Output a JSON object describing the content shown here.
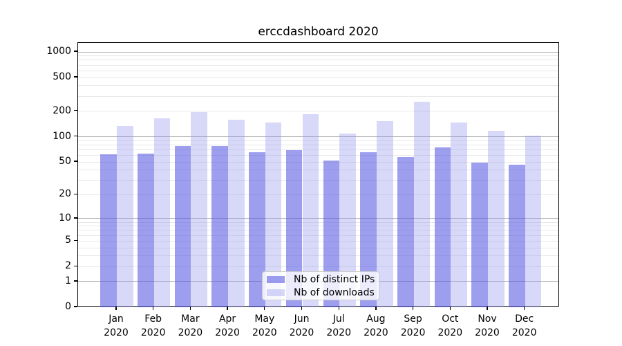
{
  "title": "erccdashboard 2020",
  "chart_data": {
    "type": "bar",
    "title": "erccdashboard 2020",
    "xlabel": "",
    "ylabel": "",
    "scale": "log1p",
    "grid": "horizontal",
    "legend_position": "lower center",
    "categories": [
      "Jan 2020",
      "Feb 2020",
      "Mar 2020",
      "Apr 2020",
      "May 2020",
      "Jun 2020",
      "Jul 2020",
      "Aug 2020",
      "Sep 2020",
      "Oct 2020",
      "Nov 2020",
      "Dec 2020"
    ],
    "series": [
      {
        "name": "Nb of distinct IPs",
        "color": "rgba(85,85,226,0.57)",
        "values": [
          62,
          63,
          78,
          77,
          65,
          69,
          52,
          65,
          57,
          74,
          49,
          46
        ]
      },
      {
        "name": "Nb of downloads",
        "color": "rgba(150,150,238,0.37)",
        "values": [
          134,
          164,
          194,
          158,
          147,
          184,
          108,
          152,
          260,
          147,
          118,
          103
        ]
      }
    ],
    "yticks": [
      0,
      1,
      2,
      5,
      10,
      20,
      50,
      100,
      200,
      500,
      1000
    ],
    "ylim": [
      0,
      1278
    ],
    "colors": {
      "distinct_ips_bar": "#a0a0ee",
      "downloads_bar": "#d8d8f7",
      "major_gridline": "#b0b0b0",
      "minor_gridline": "#e8e8e8"
    }
  },
  "legend": {
    "items": [
      {
        "label": "Nb of distinct IPs"
      },
      {
        "label": "Nb of downloads"
      }
    ]
  }
}
